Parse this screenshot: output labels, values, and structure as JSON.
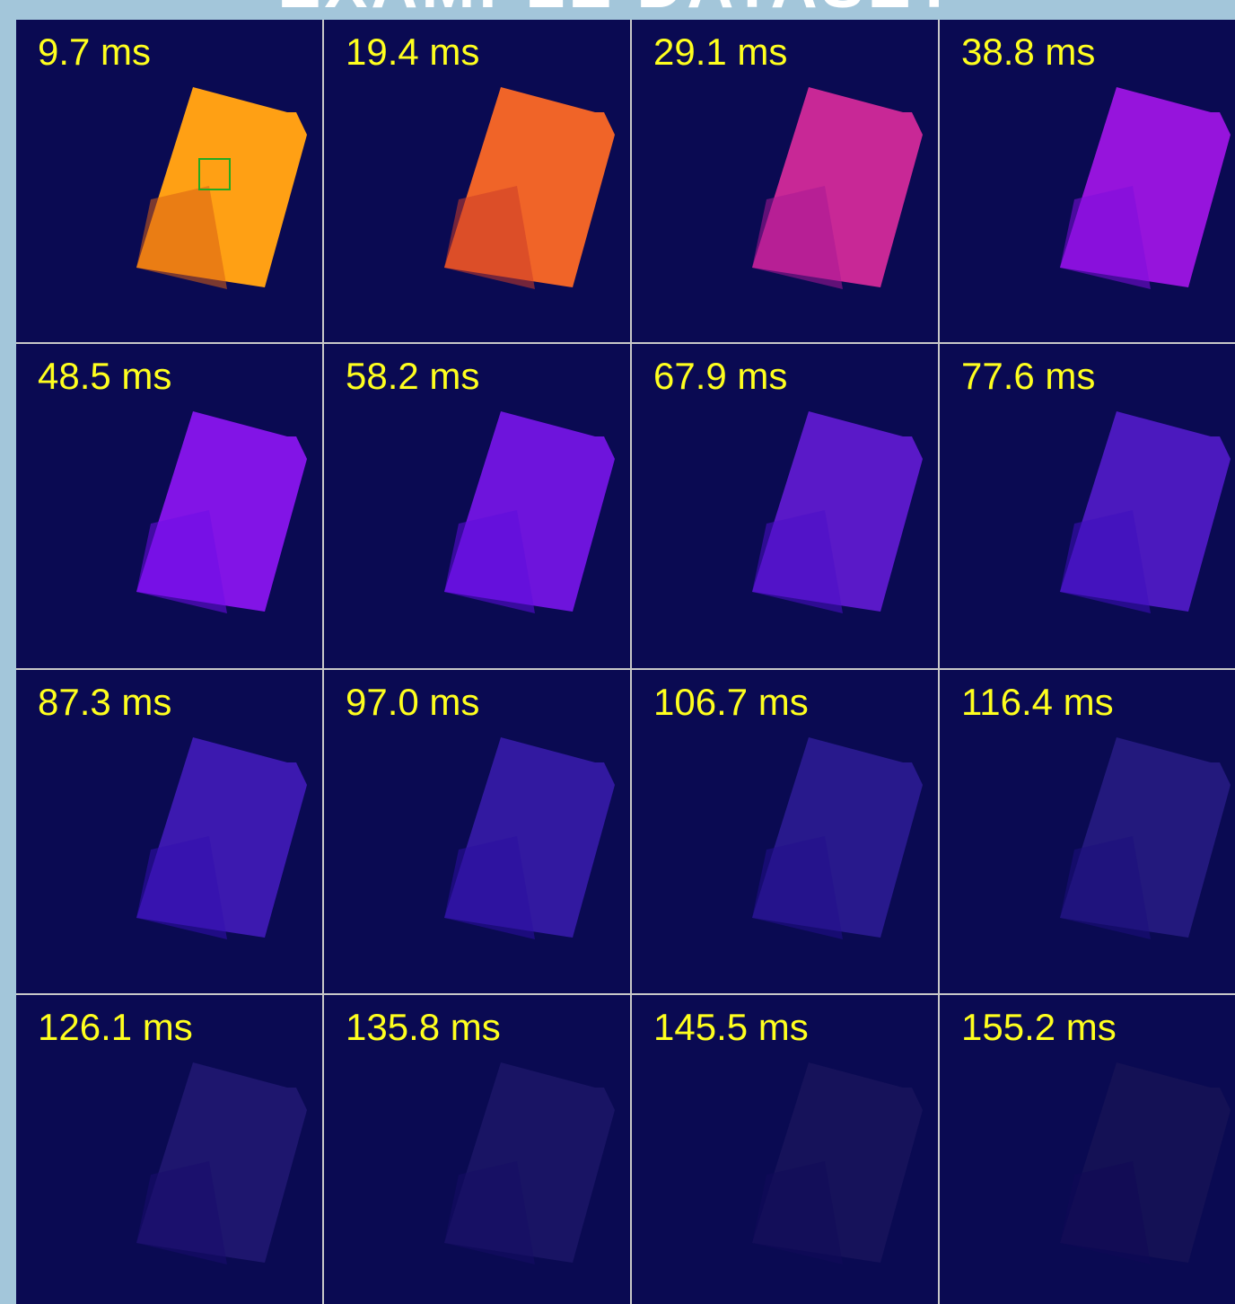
{
  "title": "EXAMPLE DATASET",
  "panels": [
    {
      "label": "9.7 ms"
    },
    {
      "label": "19.4 ms"
    },
    {
      "label": "29.1 ms"
    },
    {
      "label": "38.8 ms"
    },
    {
      "label": "48.5 ms"
    },
    {
      "label": "58.2 ms"
    },
    {
      "label": "67.9 ms"
    },
    {
      "label": "77.6 ms"
    },
    {
      "label": "87.3 ms"
    },
    {
      "label": "97.0 ms"
    },
    {
      "label": "106.7 ms"
    },
    {
      "label": "116.4 ms"
    },
    {
      "label": "126.1 ms"
    },
    {
      "label": "135.8 ms"
    },
    {
      "label": "145.5 ms"
    },
    {
      "label": "155.2 ms"
    }
  ]
}
